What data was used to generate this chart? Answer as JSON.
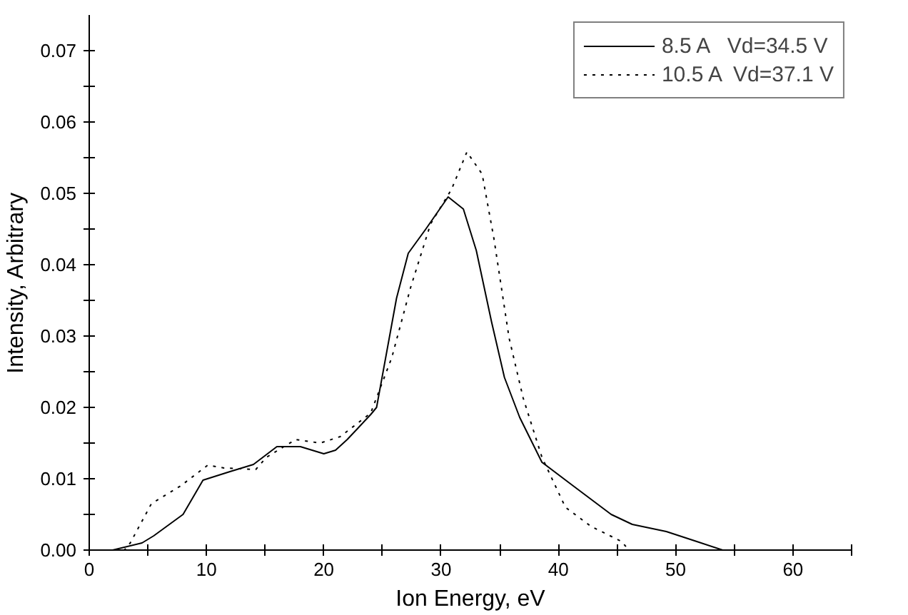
{
  "chart_data": {
    "type": "line",
    "xlabel": "Ion Energy, eV",
    "ylabel": "Intensity, Arbitrary",
    "xlim": [
      0,
      65
    ],
    "xticks": [
      0,
      {
        "value": 5,
        "label": null
      },
      10,
      {
        "value": 15,
        "label": null
      },
      20,
      {
        "value": 25,
        "label": null
      },
      30,
      {
        "value": 35,
        "label": null
      },
      40,
      {
        "value": 45,
        "label": null
      },
      50,
      {
        "value": 55,
        "label": null
      },
      60,
      {
        "value": 65,
        "label": null
      }
    ],
    "ylim": [
      0,
      0.075
    ],
    "yticks": [
      {
        "value": 0,
        "label": "0.00"
      },
      {
        "value": 0.005,
        "label": null
      },
      {
        "value": 0.01,
        "label": "0.01"
      },
      {
        "value": 0.015,
        "label": null
      },
      {
        "value": 0.02,
        "label": "0.02"
      },
      {
        "value": 0.025,
        "label": null
      },
      {
        "value": 0.03,
        "label": "0.03"
      },
      {
        "value": 0.035,
        "label": null
      },
      {
        "value": 0.04,
        "label": "0.04"
      },
      {
        "value": 0.045,
        "label": null
      },
      {
        "value": 0.05,
        "label": "0.05"
      },
      {
        "value": 0.055,
        "label": null
      },
      {
        "value": 0.06,
        "label": "0.06"
      },
      {
        "value": 0.065,
        "label": null
      },
      {
        "value": 0.07,
        "label": "0.07"
      }
    ],
    "grid": false,
    "legend": "top right",
    "marker": "none",
    "series": [
      {
        "name": "8.5 A   Vd=34.5 V",
        "color": "#000000",
        "line_style": "solid",
        "x": [
          0,
          2,
          4.5,
          5.5,
          8,
          9.7,
          12,
          14,
          16,
          18,
          20,
          21,
          22,
          24,
          24.5,
          26.2,
          27.2,
          28.7,
          30.6,
          31.9,
          33,
          34.3,
          35.4,
          36.7,
          38.6,
          41.1,
          44.5,
          46.3,
          49.2,
          51.8,
          54
        ],
        "values": [
          0,
          0,
          0.001,
          0.002,
          0.005,
          0.0098,
          0.011,
          0.012,
          0.0145,
          0.0145,
          0.0135,
          0.014,
          0.0155,
          0.019,
          0.02,
          0.0353,
          0.0416,
          0.045,
          0.0495,
          0.0478,
          0.042,
          0.032,
          0.0242,
          0.0186,
          0.0123,
          0.0092,
          0.005,
          0.0036,
          0.0026,
          0.0012,
          0
        ]
      },
      {
        "name": "10.5 A  Vd=37.1 V",
        "color": "#000000",
        "line_style": "dotted",
        "x": [
          0,
          3,
          3.5,
          5.3,
          7.8,
          10.1,
          11.5,
          14.2,
          15.1,
          17.6,
          19.7,
          21.4,
          24,
          25.8,
          27.4,
          29.1,
          30.9,
          32.2,
          33.5,
          34.5,
          35.8,
          37,
          38.6,
          40.6,
          42.8,
          45.4,
          46
        ],
        "values": [
          0,
          0,
          0.001,
          0.0065,
          0.009,
          0.0119,
          0.0115,
          0.0113,
          0.013,
          0.0155,
          0.015,
          0.0159,
          0.0192,
          0.027,
          0.0368,
          0.0457,
          0.0506,
          0.0558,
          0.0527,
          0.0437,
          0.0297,
          0.0213,
          0.013,
          0.006,
          0.0033,
          0.0012,
          0
        ]
      }
    ]
  }
}
